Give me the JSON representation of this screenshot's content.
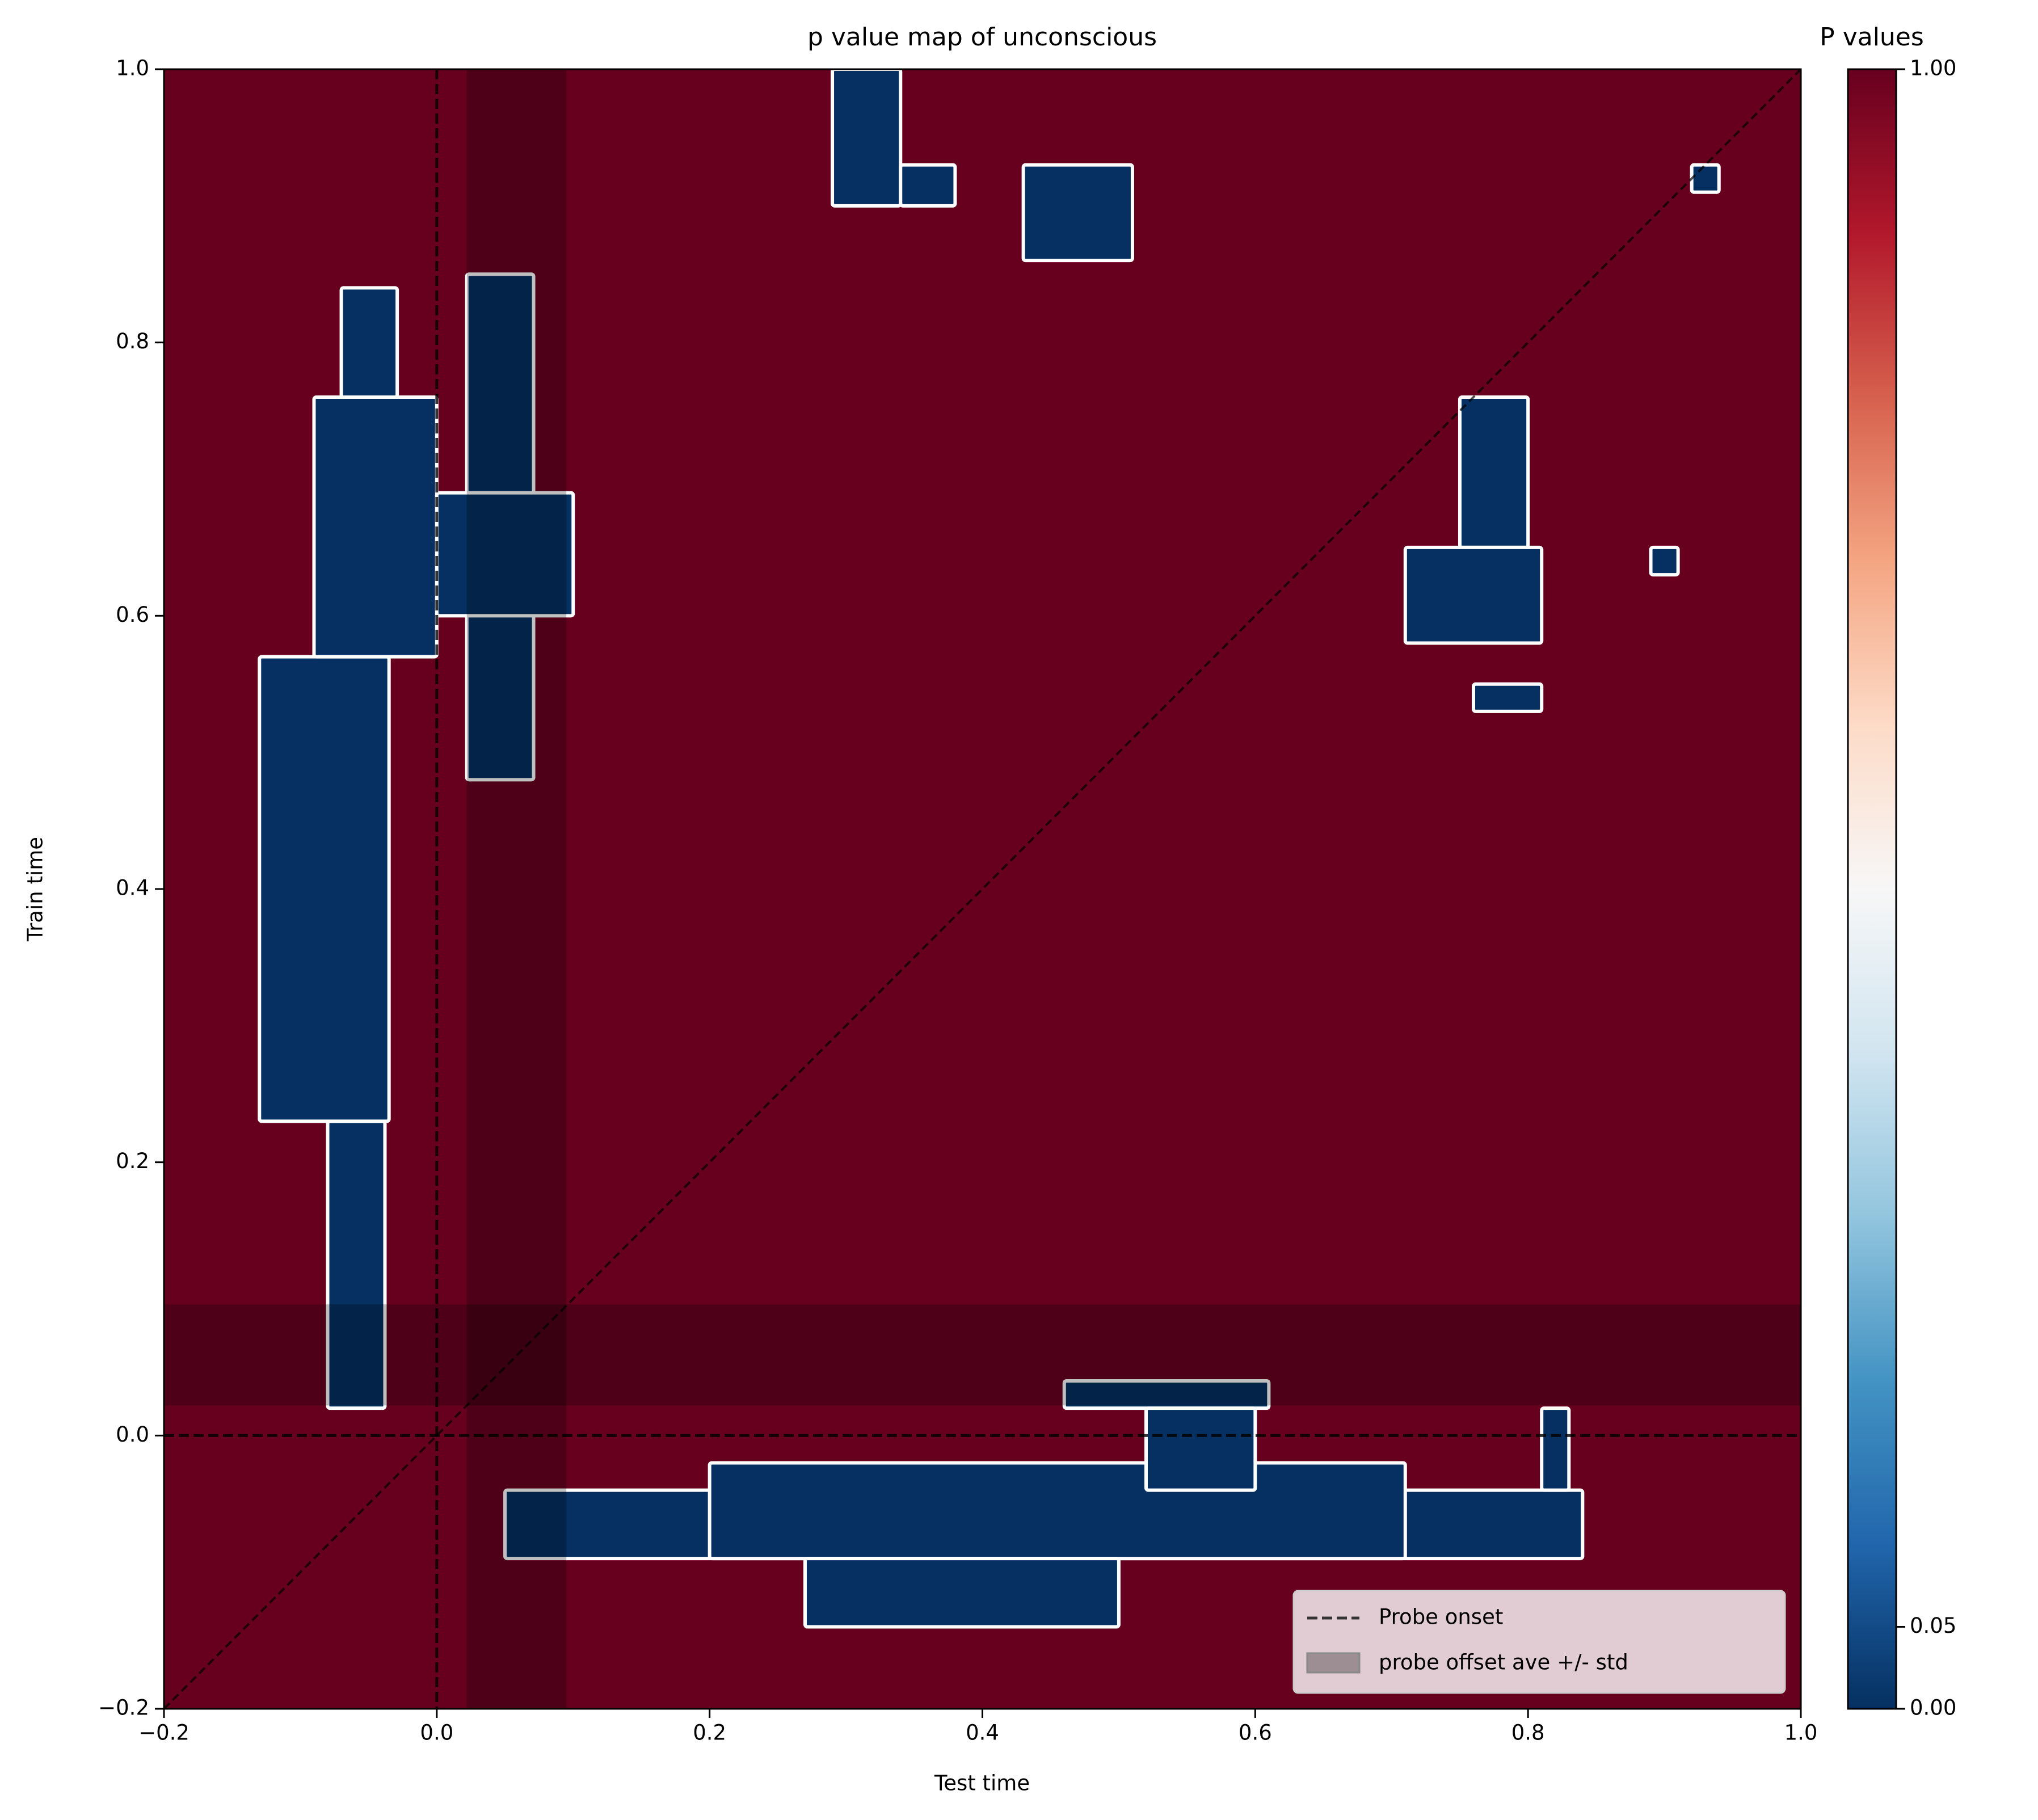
{
  "chart_data": {
    "type": "heatmap",
    "title": "p value map of unconscious",
    "xlabel": "Test time",
    "ylabel": "Train time",
    "xlim": [
      -0.2,
      1.0
    ],
    "ylim": [
      -0.2,
      1.0
    ],
    "xticks": [
      {
        "value": -0.2,
        "label": "−0.2"
      },
      {
        "value": 0,
        "label": "0.0"
      },
      {
        "value": 0.2,
        "label": "0.2"
      },
      {
        "value": 0.4,
        "label": "0.4"
      },
      {
        "value": 0.6,
        "label": "0.6"
      },
      {
        "value": 0.8,
        "label": "0.8"
      },
      {
        "value": 1,
        "label": "1.0"
      }
    ],
    "yticks": [
      {
        "value": -0.2,
        "label": "−0.2"
      },
      {
        "value": 0,
        "label": "0.0"
      },
      {
        "value": 0.2,
        "label": "0.2"
      },
      {
        "value": 0.4,
        "label": "0.4"
      },
      {
        "value": 0.6,
        "label": "0.6"
      },
      {
        "value": 0.8,
        "label": "0.8"
      },
      {
        "value": 1,
        "label": "1.0"
      }
    ],
    "colorbar": {
      "title": "P values",
      "lim": [
        0,
        1
      ],
      "ticks": [
        {
          "value": 0,
          "label": "0.00"
        },
        {
          "value": 0.05,
          "label": "0.05"
        },
        {
          "value": 1,
          "label": "1.00"
        }
      ],
      "colormap": [
        "#053061",
        "#2166ac",
        "#4393c3",
        "#92c5de",
        "#d1e5f0",
        "#f7f7f7",
        "#fddbc7",
        "#f4a582",
        "#d6604d",
        "#b2182b",
        "#67001f"
      ]
    },
    "background_value": 1,
    "regions": [
      {
        "x": [
          -0.08,
          -0.038
        ],
        "y": [
          0.02,
          0.23
        ],
        "value": 0
      },
      {
        "x": [
          -0.13,
          -0.035
        ],
        "y": [
          0.23,
          0.57
        ],
        "value": 0
      },
      {
        "x": [
          -0.09,
          0.0
        ],
        "y": [
          0.57,
          0.76
        ],
        "value": 0
      },
      {
        "x": [
          -0.07,
          -0.029
        ],
        "y": [
          0.76,
          0.84
        ],
        "value": 0
      },
      {
        "x": [
          0.022,
          0.071
        ],
        "y": [
          0.48,
          0.85
        ],
        "value": 0
      },
      {
        "x": [
          0.0,
          0.1
        ],
        "y": [
          0.6,
          0.69
        ],
        "value": 0
      },
      {
        "x": [
          0.29,
          0.34
        ],
        "y": [
          0.9,
          1.0
        ],
        "value": 0
      },
      {
        "x": [
          0.34,
          0.38
        ],
        "y": [
          0.9,
          0.93
        ],
        "value": 0
      },
      {
        "x": [
          0.43,
          0.51
        ],
        "y": [
          0.86,
          0.93
        ],
        "value": 0
      },
      {
        "x": [
          0.92,
          0.94
        ],
        "y": [
          0.91,
          0.93
        ],
        "value": 0
      },
      {
        "x": [
          0.75,
          0.8
        ],
        "y": [
          0.65,
          0.76
        ],
        "value": 0
      },
      {
        "x": [
          0.71,
          0.81
        ],
        "y": [
          0.58,
          0.65
        ],
        "value": 0
      },
      {
        "x": [
          0.76,
          0.81
        ],
        "y": [
          0.53,
          0.55
        ],
        "value": 0
      },
      {
        "x": [
          0.89,
          0.91
        ],
        "y": [
          0.63,
          0.65
        ],
        "value": 0
      },
      {
        "x": [
          0.05,
          0.84
        ],
        "y": [
          -0.09,
          -0.04
        ],
        "value": 0
      },
      {
        "x": [
          0.2,
          0.71
        ],
        "y": [
          -0.09,
          -0.02
        ],
        "value": 0
      },
      {
        "x": [
          0.27,
          0.5
        ],
        "y": [
          -0.14,
          -0.09
        ],
        "value": 0
      },
      {
        "x": [
          0.46,
          0.61
        ],
        "y": [
          0.02,
          0.04
        ],
        "value": 0
      },
      {
        "x": [
          0.52,
          0.6
        ],
        "y": [
          -0.04,
          0.02
        ],
        "value": 0
      },
      {
        "x": [
          0.81,
          0.83
        ],
        "y": [
          -0.04,
          0.02
        ],
        "value": 0
      }
    ],
    "onset": {
      "name": "Probe onset",
      "x": 0,
      "y": 0,
      "color": "#333333"
    },
    "offset": {
      "name": "probe offset ave +/- std",
      "x": [
        0.022,
        0.095
      ],
      "y": [
        0.022,
        0.096
      ],
      "color": "#000000"
    },
    "legend": "lower right"
  }
}
